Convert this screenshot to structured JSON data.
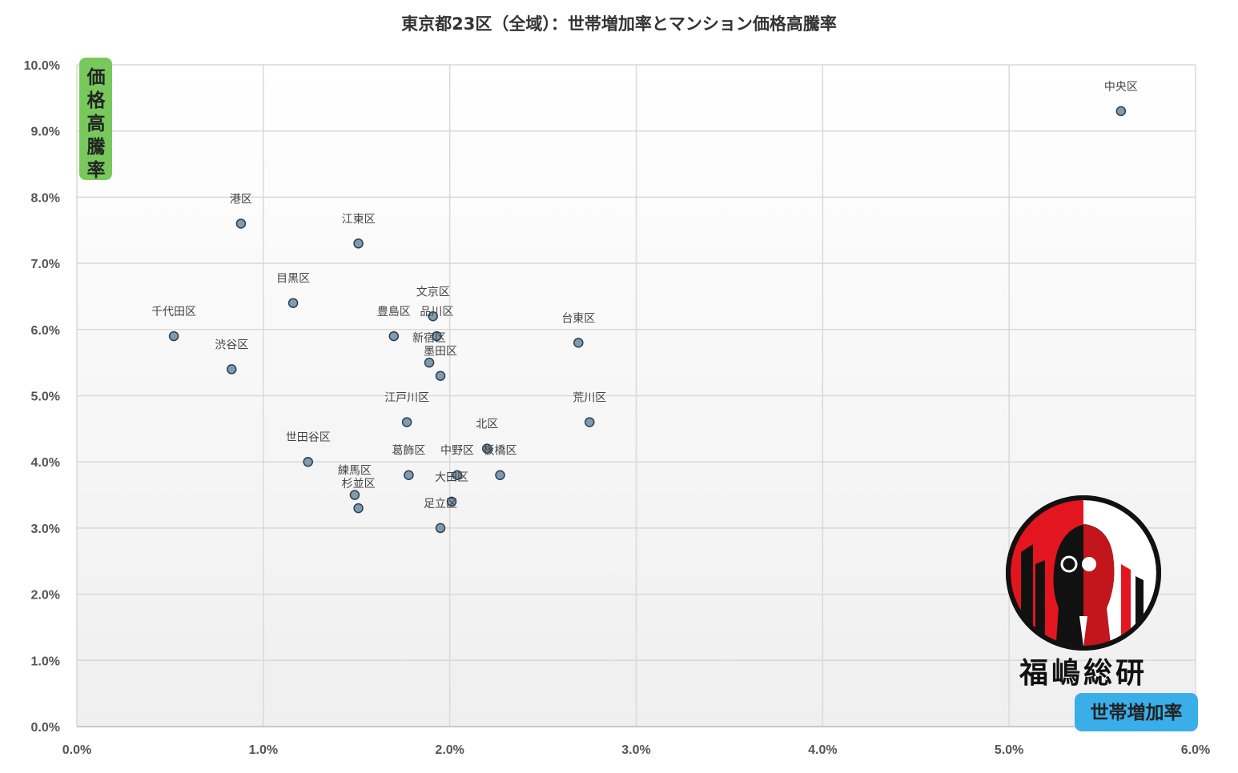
{
  "chart_data": {
    "type": "scatter",
    "title": "東京都23区（全域）：世帯増加率とマンション価格高騰率",
    "xlabel": "世帯増加率",
    "ylabel": "価格高騰率",
    "xlim": [
      0,
      0.06
    ],
    "ylim": [
      0,
      0.1
    ],
    "x_ticks": [
      "0.0%",
      "1.0%",
      "2.0%",
      "3.0%",
      "4.0%",
      "5.0%",
      "6.0%"
    ],
    "y_ticks": [
      "0.0%",
      "1.0%",
      "2.0%",
      "3.0%",
      "4.0%",
      "5.0%",
      "6.0%",
      "7.0%",
      "8.0%",
      "9.0%",
      "10.0%"
    ],
    "grid": true,
    "points": [
      {
        "label": "中央区",
        "x": 0.056,
        "y": 0.093
      },
      {
        "label": "港区",
        "x": 0.0088,
        "y": 0.076
      },
      {
        "label": "江東区",
        "x": 0.0151,
        "y": 0.073
      },
      {
        "label": "目黒区",
        "x": 0.0116,
        "y": 0.064
      },
      {
        "label": "千代田区",
        "x": 0.0052,
        "y": 0.059
      },
      {
        "label": "渋谷区",
        "x": 0.0083,
        "y": 0.054
      },
      {
        "label": "文京区",
        "x": 0.0191,
        "y": 0.062
      },
      {
        "label": "豊島区",
        "x": 0.017,
        "y": 0.059
      },
      {
        "label": "品川区",
        "x": 0.0193,
        "y": 0.059
      },
      {
        "label": "新宿区",
        "x": 0.0189,
        "y": 0.055
      },
      {
        "label": "墨田区",
        "x": 0.0195,
        "y": 0.053
      },
      {
        "label": "台東区",
        "x": 0.0269,
        "y": 0.058
      },
      {
        "label": "荒川区",
        "x": 0.0275,
        "y": 0.046
      },
      {
        "label": "江戸川区",
        "x": 0.0177,
        "y": 0.046
      },
      {
        "label": "北区",
        "x": 0.022,
        "y": 0.042
      },
      {
        "label": "世田谷区",
        "x": 0.0124,
        "y": 0.04
      },
      {
        "label": "葛飾区",
        "x": 0.0178,
        "y": 0.038
      },
      {
        "label": "中野区",
        "x": 0.0204,
        "y": 0.038
      },
      {
        "label": "板橋区",
        "x": 0.0227,
        "y": 0.038
      },
      {
        "label": "大田区",
        "x": 0.0201,
        "y": 0.034
      },
      {
        "label": "練馬区",
        "x": 0.0149,
        "y": 0.035
      },
      {
        "label": "杉並区",
        "x": 0.0151,
        "y": 0.033
      },
      {
        "label": "足立区",
        "x": 0.0195,
        "y": 0.03
      }
    ]
  },
  "logo": {
    "text": "福嶋総研"
  },
  "colors": {
    "point_fill": "#7f9bb0",
    "point_stroke": "#2c3e50",
    "grid": "#d9d9d9",
    "ylabel_badge": "#77c95b",
    "xlabel_badge": "#3aaee8",
    "logo_red": "#e3161f",
    "logo_black": "#111111"
  }
}
